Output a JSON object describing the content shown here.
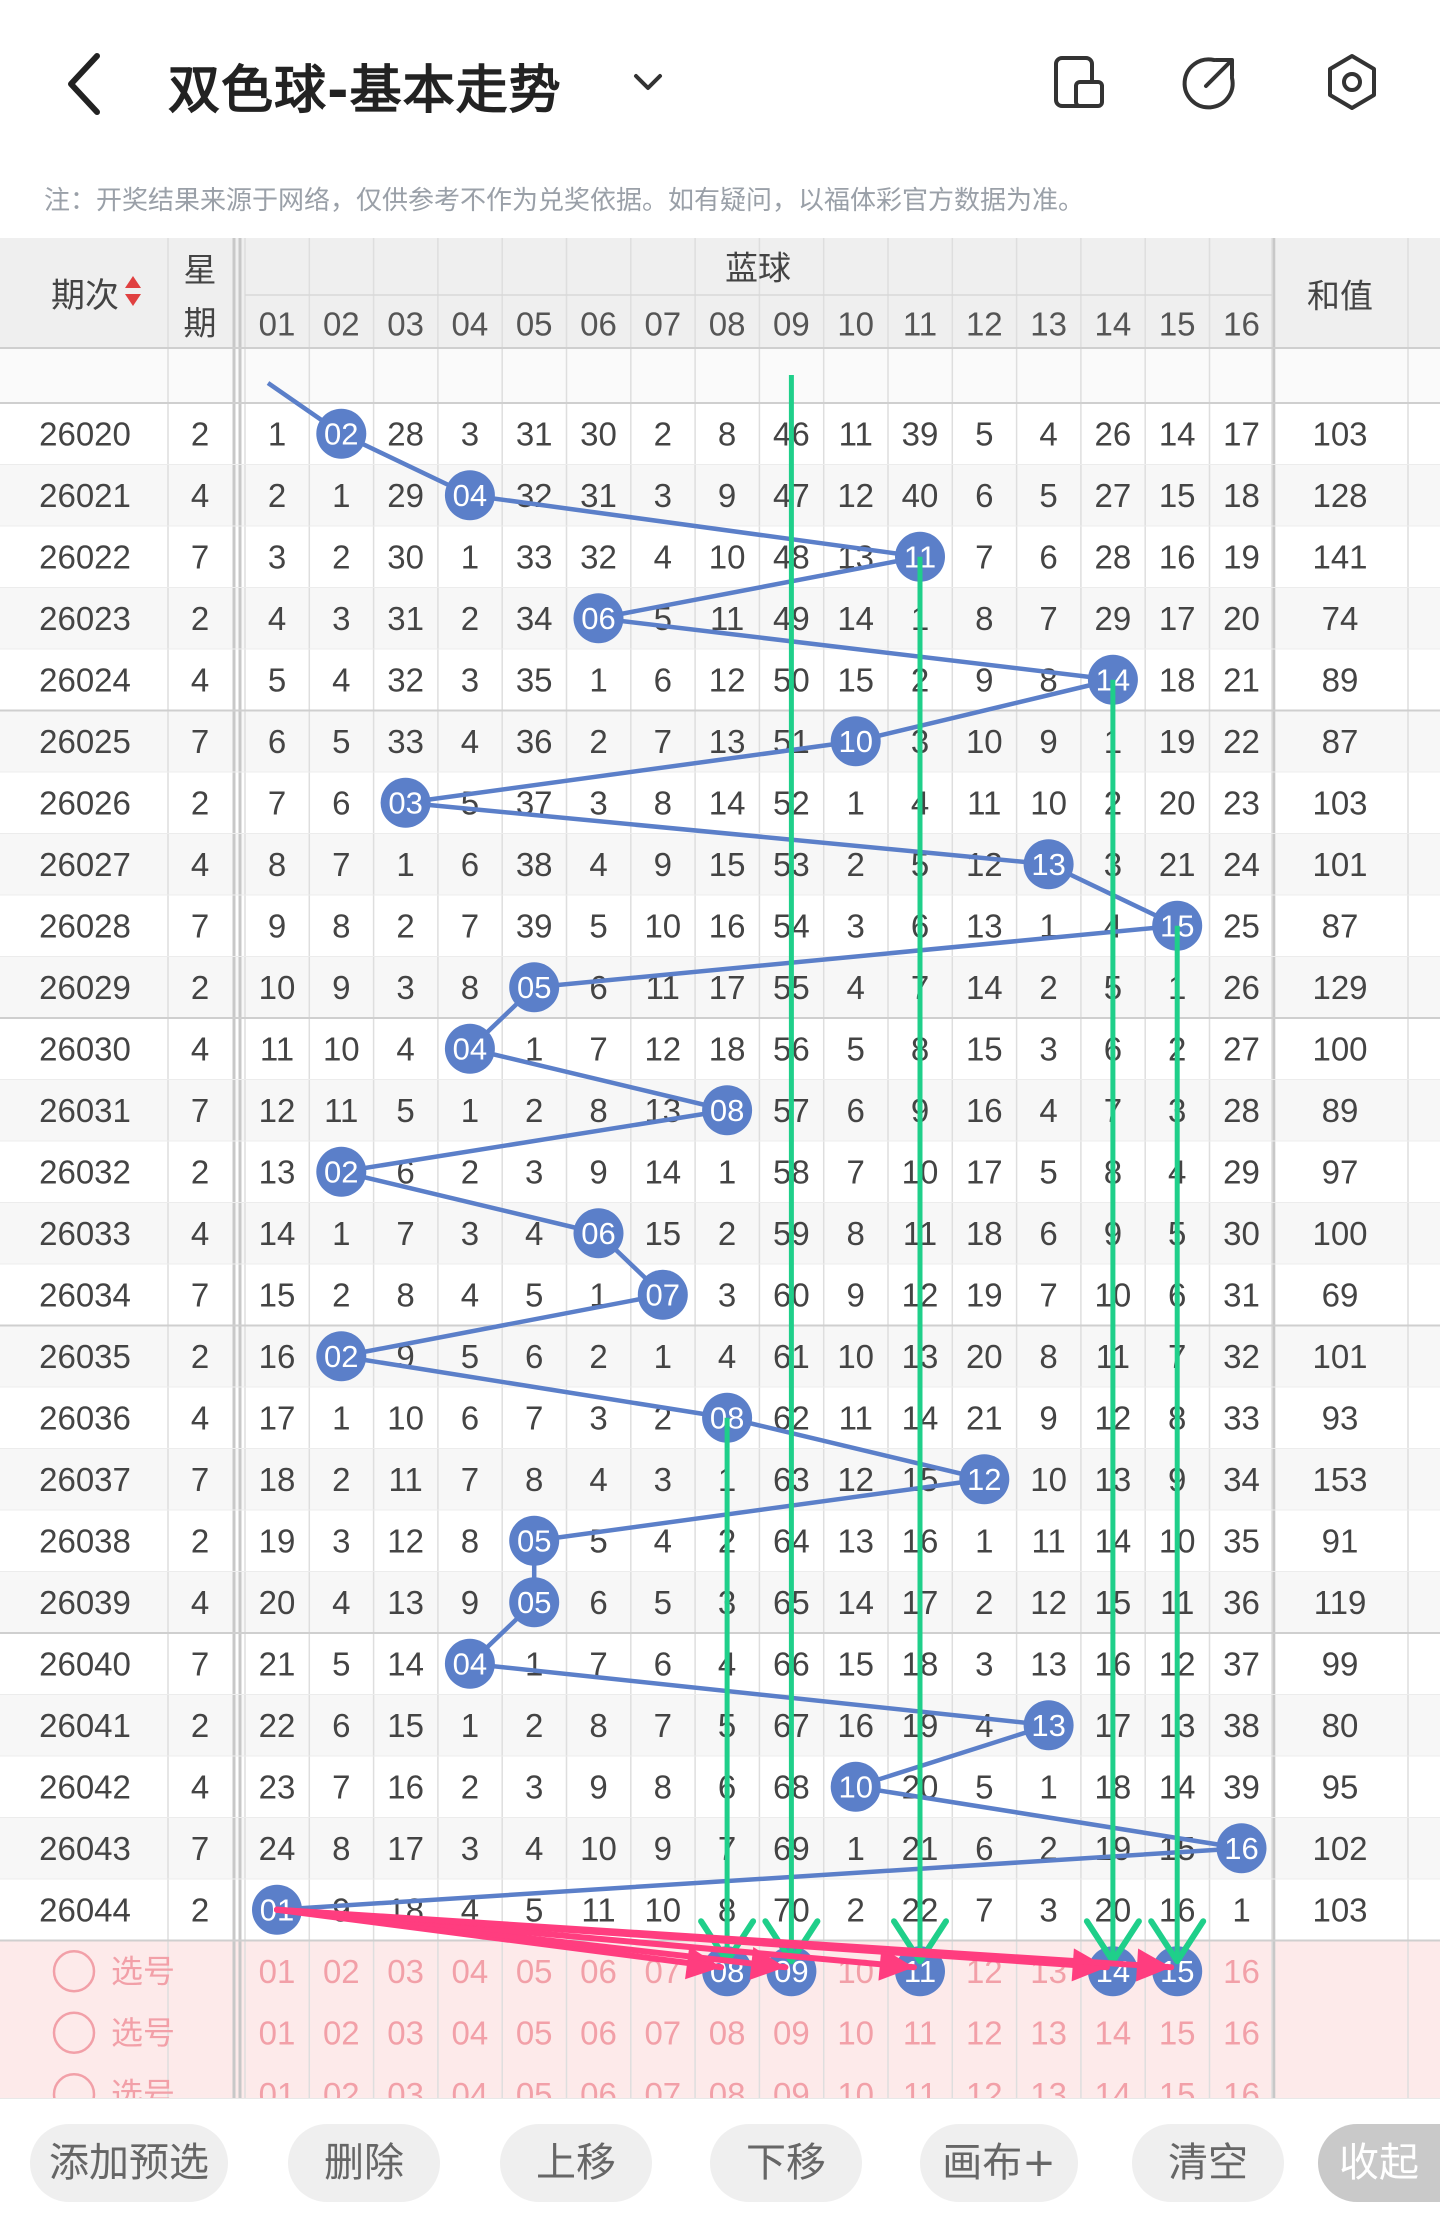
{
  "app": {
    "title": "双色球-基本走势",
    "note": "注：开奖结果来源于网络，仅供参考不作为兑奖依据。如有疑问，以福体彩官方数据为准。"
  },
  "icons": [
    "back-arrow-icon",
    "chevron-down-icon",
    "phone-landscape-icon",
    "share-icon",
    "settings-icon"
  ],
  "header": {
    "period": "期次",
    "weekday": "星期",
    "blue": "蓝球",
    "sum": "和值",
    "cols": [
      "01",
      "02",
      "03",
      "04",
      "05",
      "06",
      "07",
      "08",
      "09",
      "10",
      "11",
      "12",
      "13",
      "14",
      "15",
      "16"
    ]
  },
  "rows": [
    {
      "p": "26020",
      "w": "2",
      "c": [
        1,
        2,
        28,
        3,
        31,
        30,
        2,
        8,
        46,
        11,
        39,
        5,
        4,
        26,
        14,
        17
      ],
      "hit": 2,
      "sum": "103"
    },
    {
      "p": "26021",
      "w": "4",
      "c": [
        2,
        1,
        29,
        4,
        32,
        31,
        3,
        9,
        47,
        12,
        40,
        6,
        5,
        27,
        15,
        18
      ],
      "hit": 4,
      "sum": "128"
    },
    {
      "p": "26022",
      "w": "7",
      "c": [
        3,
        2,
        30,
        1,
        33,
        32,
        4,
        10,
        48,
        13,
        11,
        7,
        6,
        28,
        16,
        19
      ],
      "hit": 11,
      "sum": "141"
    },
    {
      "p": "26023",
      "w": "2",
      "c": [
        4,
        3,
        31,
        2,
        34,
        6,
        5,
        11,
        49,
        14,
        1,
        8,
        7,
        29,
        17,
        20
      ],
      "hit": 6,
      "sum": "74"
    },
    {
      "p": "26024",
      "w": "4",
      "c": [
        5,
        4,
        32,
        3,
        35,
        1,
        6,
        12,
        50,
        15,
        2,
        9,
        8,
        14,
        18,
        21
      ],
      "hit": 14,
      "sum": "89"
    },
    {
      "p": "26025",
      "w": "7",
      "c": [
        6,
        5,
        33,
        4,
        36,
        2,
        7,
        13,
        51,
        10,
        3,
        10,
        9,
        1,
        19,
        22
      ],
      "hit": 10,
      "sum": "87"
    },
    {
      "p": "26026",
      "w": "2",
      "c": [
        7,
        6,
        3,
        5,
        37,
        3,
        8,
        14,
        52,
        1,
        4,
        11,
        10,
        2,
        20,
        23
      ],
      "hit": 3,
      "sum": "103"
    },
    {
      "p": "26027",
      "w": "4",
      "c": [
        8,
        7,
        1,
        6,
        38,
        4,
        9,
        15,
        53,
        2,
        5,
        12,
        13,
        3,
        21,
        24
      ],
      "hit": 13,
      "sum": "101"
    },
    {
      "p": "26028",
      "w": "7",
      "c": [
        9,
        8,
        2,
        7,
        39,
        5,
        10,
        16,
        54,
        3,
        6,
        13,
        1,
        4,
        15,
        25
      ],
      "hit": 15,
      "sum": "87"
    },
    {
      "p": "26029",
      "w": "2",
      "c": [
        10,
        9,
        3,
        8,
        5,
        6,
        11,
        17,
        55,
        4,
        7,
        14,
        2,
        5,
        1,
        26
      ],
      "hit": 5,
      "sum": "129"
    },
    {
      "p": "26030",
      "w": "4",
      "c": [
        11,
        10,
        4,
        4,
        1,
        7,
        12,
        18,
        56,
        5,
        8,
        15,
        3,
        6,
        2,
        27
      ],
      "hit": 4,
      "sum": "100"
    },
    {
      "p": "26031",
      "w": "7",
      "c": [
        12,
        11,
        5,
        1,
        2,
        8,
        13,
        8,
        57,
        6,
        9,
        16,
        4,
        7,
        3,
        28
      ],
      "hit": 8,
      "sum": "89"
    },
    {
      "p": "26032",
      "w": "2",
      "c": [
        13,
        2,
        6,
        2,
        3,
        9,
        14,
        1,
        58,
        7,
        10,
        17,
        5,
        8,
        4,
        29
      ],
      "hit": 2,
      "sum": "97"
    },
    {
      "p": "26033",
      "w": "4",
      "c": [
        14,
        1,
        7,
        3,
        4,
        6,
        15,
        2,
        59,
        8,
        11,
        18,
        6,
        9,
        5,
        30
      ],
      "hit": 6,
      "sum": "100"
    },
    {
      "p": "26034",
      "w": "7",
      "c": [
        15,
        2,
        8,
        4,
        5,
        1,
        7,
        3,
        60,
        9,
        12,
        19,
        7,
        10,
        6,
        31
      ],
      "hit": 7,
      "sum": "69"
    },
    {
      "p": "26035",
      "w": "2",
      "c": [
        16,
        2,
        9,
        5,
        6,
        2,
        1,
        4,
        61,
        10,
        13,
        20,
        8,
        11,
        7,
        32
      ],
      "hit": 2,
      "sum": "101"
    },
    {
      "p": "26036",
      "w": "4",
      "c": [
        17,
        1,
        10,
        6,
        7,
        3,
        2,
        8,
        62,
        11,
        14,
        21,
        9,
        12,
        8,
        33
      ],
      "hit": 8,
      "sum": "93"
    },
    {
      "p": "26037",
      "w": "7",
      "c": [
        18,
        2,
        11,
        7,
        8,
        4,
        3,
        1,
        63,
        12,
        15,
        12,
        10,
        13,
        9,
        34
      ],
      "hit": 12,
      "sum": "153"
    },
    {
      "p": "26038",
      "w": "2",
      "c": [
        19,
        3,
        12,
        8,
        5,
        5,
        4,
        2,
        64,
        13,
        16,
        1,
        11,
        14,
        10,
        35
      ],
      "hit": 5,
      "sum": "91"
    },
    {
      "p": "26039",
      "w": "4",
      "c": [
        20,
        4,
        13,
        9,
        5,
        6,
        5,
        3,
        65,
        14,
        17,
        2,
        12,
        15,
        11,
        36
      ],
      "hit": 5,
      "sum": "119"
    },
    {
      "p": "26040",
      "w": "7",
      "c": [
        21,
        5,
        14,
        4,
        1,
        7,
        6,
        4,
        66,
        15,
        18,
        3,
        13,
        16,
        12,
        37
      ],
      "hit": 4,
      "sum": "99"
    },
    {
      "p": "26041",
      "w": "2",
      "c": [
        22,
        6,
        15,
        1,
        2,
        8,
        7,
        5,
        67,
        16,
        19,
        4,
        13,
        17,
        13,
        38
      ],
      "hit": 13,
      "sum": "80"
    },
    {
      "p": "26042",
      "w": "4",
      "c": [
        23,
        7,
        16,
        2,
        3,
        9,
        8,
        6,
        68,
        10,
        20,
        5,
        1,
        18,
        14,
        39
      ],
      "hit": 10,
      "sum": "95"
    },
    {
      "p": "26043",
      "w": "7",
      "c": [
        24,
        8,
        17,
        3,
        4,
        10,
        9,
        7,
        69,
        1,
        21,
        6,
        2,
        19,
        15,
        16
      ],
      "hit": 16,
      "sum": "102"
    },
    {
      "p": "26044",
      "w": "2",
      "c": [
        1,
        9,
        18,
        4,
        5,
        11,
        10,
        8,
        70,
        2,
        22,
        7,
        3,
        20,
        16,
        1
      ],
      "hit": 1,
      "sum": "103"
    }
  ],
  "select_rows": [
    {
      "label": "选号",
      "selected": [
        "08",
        "09",
        "11",
        "14",
        "15"
      ]
    },
    {
      "label": "选号",
      "selected": []
    },
    {
      "label": "选号",
      "selected": []
    }
  ],
  "arrows": {
    "green_columns": [
      "08",
      "09",
      "11",
      "14",
      "15"
    ],
    "pink_from": "01",
    "pink_to": [
      "08",
      "09",
      "11",
      "14",
      "15"
    ]
  },
  "buttons": [
    "添加预选",
    "删除",
    "上移",
    "下移",
    "画布+",
    "清空",
    "收起"
  ],
  "colors": {
    "ball": "#5b7fc9",
    "line": "#5b7fc9",
    "green": "#1fcf8a",
    "pink": "#ff3d7f",
    "select_bg": "#fdeaea",
    "select_text": "#f2a0a8",
    "header_bg": "#efefef"
  }
}
